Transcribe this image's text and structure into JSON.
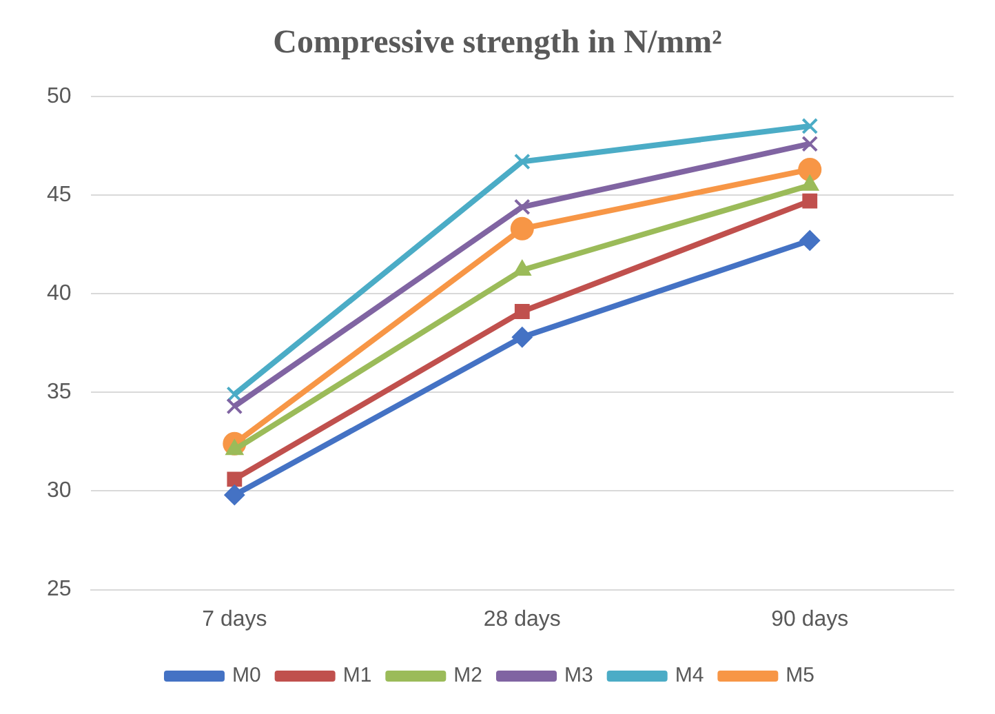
{
  "chart_data": {
    "type": "line",
    "title": "Compressive strength in N/mm²",
    "categories": [
      "7 days",
      "28 days",
      "90 days"
    ],
    "series": [
      {
        "name": "M0",
        "color": "#4472c4",
        "values": [
          29.8,
          37.8,
          42.7
        ],
        "marker": "diamond"
      },
      {
        "name": "M1",
        "color": "#c0504d",
        "values": [
          30.6,
          39.1,
          44.7
        ],
        "marker": "square"
      },
      {
        "name": "M2",
        "color": "#9bbb59",
        "values": [
          32.1,
          41.2,
          45.5
        ],
        "marker": "triangle"
      },
      {
        "name": "M3",
        "color": "#8064a2",
        "values": [
          34.3,
          44.4,
          47.6
        ],
        "marker": "cross"
      },
      {
        "name": "M4",
        "color": "#4bacc6",
        "values": [
          34.9,
          46.7,
          48.5
        ],
        "marker": "cross"
      },
      {
        "name": "M5",
        "color": "#f79646",
        "values": [
          32.4,
          43.3,
          46.3
        ],
        "marker": "circle"
      }
    ],
    "ylim": [
      25,
      50
    ],
    "yticks": [
      25,
      30,
      35,
      40,
      45,
      50
    ],
    "grid": "y",
    "legend": "bottom",
    "line_style": "solid"
  }
}
